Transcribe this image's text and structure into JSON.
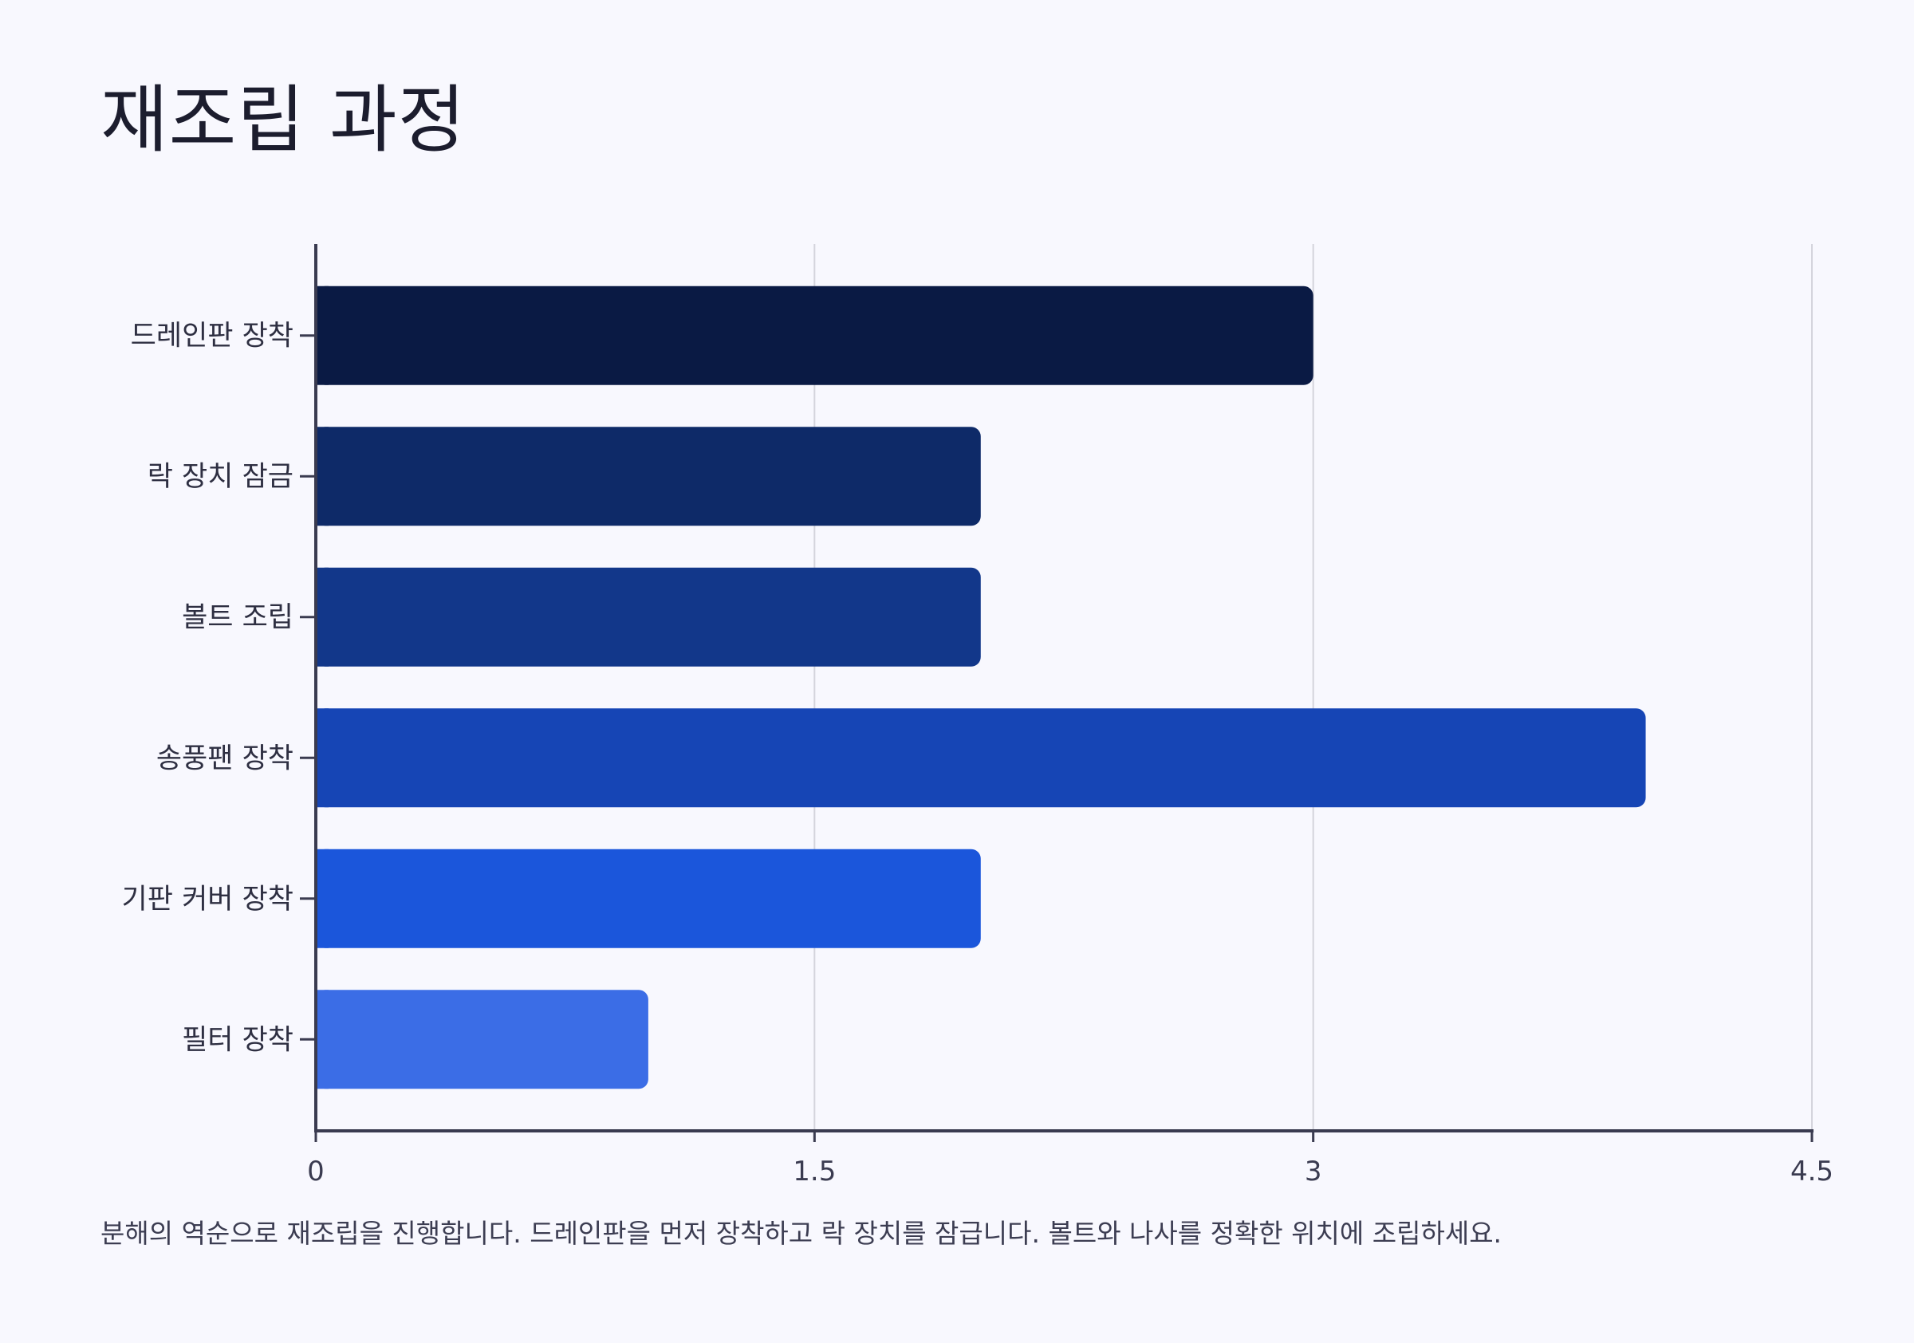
{
  "chart_data": {
    "type": "bar",
    "orientation": "horizontal",
    "title": "재조립 과정",
    "categories": [
      "드레인판 장착",
      "락 장치 잠금",
      "볼트 조립",
      "송풍팬 장착",
      "기판 커버 장착",
      "필터 장착"
    ],
    "values": [
      3,
      2,
      2,
      4,
      2,
      1
    ],
    "colors": [
      "#0a1a44",
      "#0e2a68",
      "#12378a",
      "#1645b5",
      "#1b56db",
      "#3b6de6"
    ],
    "xlim": [
      0,
      4.5
    ],
    "xticks": [
      "0",
      "1.5",
      "3",
      "4.5"
    ],
    "xtick_values": [
      0,
      1.5,
      3,
      4.5
    ],
    "xlabel": "",
    "ylabel": "",
    "grid": "vertical",
    "legend": "none",
    "note": "분해의 역순으로 재조립을 진행합니다. 드레인판을 먼저 장착하고 락 장치를 잠급니다. 볼트와 나사를 정확한 위치에 조립하세요."
  }
}
